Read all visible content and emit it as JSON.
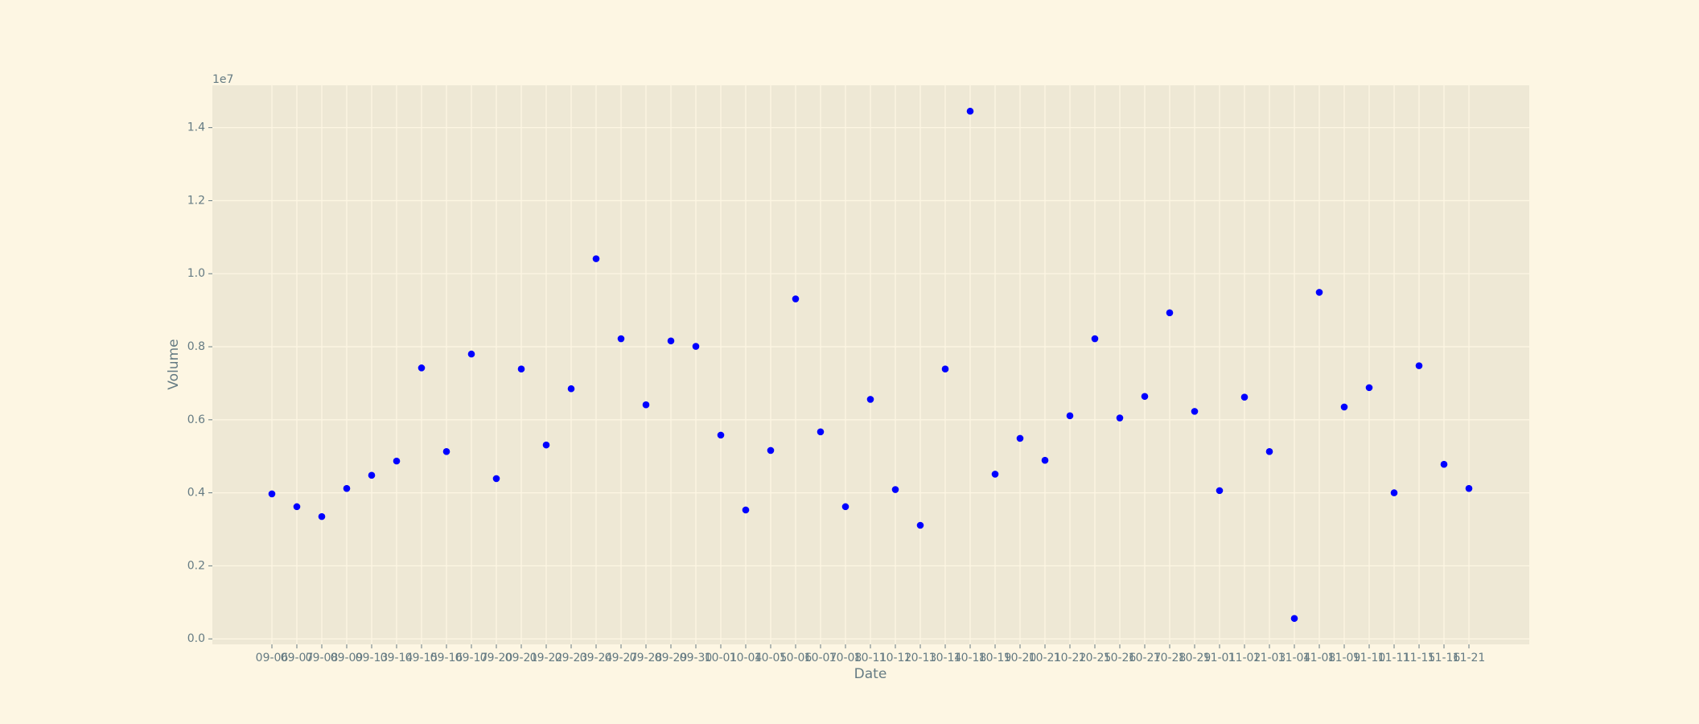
{
  "chart_data": {
    "type": "scatter",
    "x_label": "Date",
    "y_label": "Volume",
    "offset_label": "1e7",
    "categories": [
      "09-06",
      "09-07",
      "09-08",
      "09-09",
      "09-13",
      "09-14",
      "09-15",
      "09-16",
      "09-17",
      "09-20",
      "09-21",
      "09-22",
      "09-23",
      "09-24",
      "09-27",
      "09-28",
      "09-29",
      "09-30",
      "10-01",
      "10-04",
      "10-05",
      "10-06",
      "10-07",
      "10-08",
      "10-11",
      "10-12",
      "10-13",
      "10-14",
      "10-18",
      "10-19",
      "10-20",
      "10-21",
      "10-22",
      "10-25",
      "10-26",
      "10-27",
      "10-28",
      "10-29",
      "11-01",
      "11-02",
      "11-03",
      "11-04",
      "11-08",
      "11-09",
      "11-10",
      "11-11",
      "11-15",
      "11-16",
      "11-21"
    ],
    "values": [
      3970000,
      3620000,
      3350000,
      4120000,
      4480000,
      4870000,
      7420000,
      5130000,
      7800000,
      4390000,
      7390000,
      5310000,
      6850000,
      10410000,
      8220000,
      6410000,
      8160000,
      8010000,
      5580000,
      3530000,
      5160000,
      9310000,
      5670000,
      3620000,
      6560000,
      4090000,
      3110000,
      7390000,
      14450000,
      4510000,
      5490000,
      4890000,
      6110000,
      8220000,
      6050000,
      6640000,
      8930000,
      6230000,
      4060000,
      6620000,
      5130000,
      560000,
      9490000,
      6350000,
      6880000,
      4000000,
      7480000,
      4780000,
      4120000
    ],
    "color": "#0000ff",
    "ylim": [
      -150000,
      15160000
    ],
    "yticks": [
      {
        "value": 0,
        "label": "0.0"
      },
      {
        "value": 2000000,
        "label": "0.2"
      },
      {
        "value": 4000000,
        "label": "0.4"
      },
      {
        "value": 6000000,
        "label": "0.6"
      },
      {
        "value": 8000000,
        "label": "0.8"
      },
      {
        "value": 10000000,
        "label": "1.0"
      },
      {
        "value": 12000000,
        "label": "1.2"
      },
      {
        "value": 14000000,
        "label": "1.4"
      }
    ],
    "grid": true
  }
}
